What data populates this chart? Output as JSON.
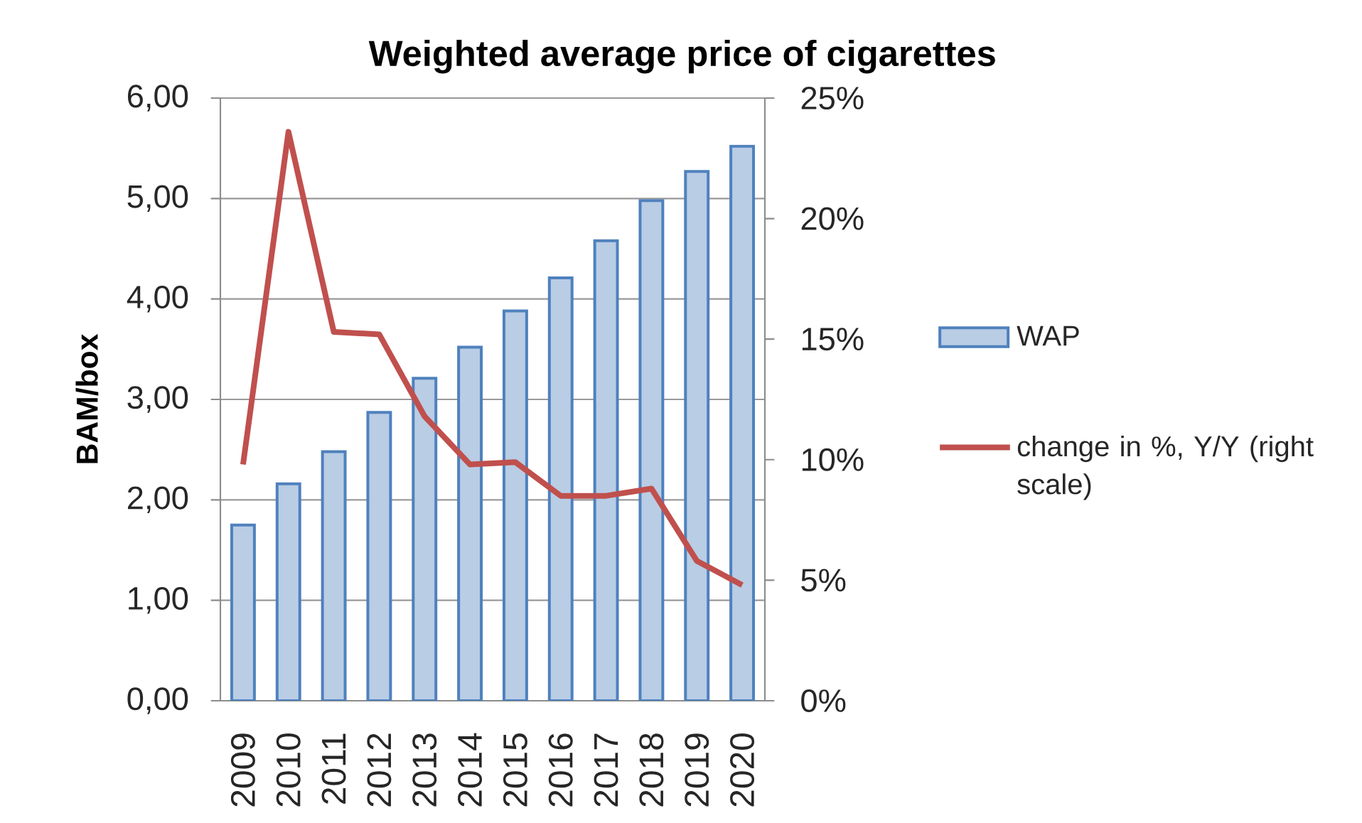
{
  "chart_data": {
    "type": "bar",
    "title": "Weighted average price of cigarettes",
    "ylabel": "BAM/box",
    "categories": [
      "2009",
      "2010",
      "2011",
      "2012",
      "2013",
      "2014",
      "2015",
      "2016",
      "2017",
      "2018",
      "2019",
      "2020"
    ],
    "series": [
      {
        "name": "WAP",
        "color": "#4f81bd",
        "values": [
          1.75,
          2.16,
          2.48,
          2.87,
          3.21,
          3.52,
          3.88,
          4.21,
          4.58,
          4.98,
          5.27,
          5.52
        ]
      },
      {
        "name": "change in %, Y/Y (right scale)",
        "type": "line",
        "axis": "y2",
        "color": "#c0504d",
        "values": [
          9.8,
          23.6,
          15.3,
          15.2,
          11.8,
          9.8,
          9.9,
          8.5,
          8.5,
          8.8,
          5.8,
          4.8
        ]
      }
    ],
    "ylim": [
      0,
      6
    ],
    "yticks": [
      {
        "value": 0,
        "label": "0,00"
      },
      {
        "value": 1,
        "label": "1,00"
      },
      {
        "value": 2,
        "label": "2,00"
      },
      {
        "value": 3,
        "label": "3,00"
      },
      {
        "value": 4,
        "label": "4,00"
      },
      {
        "value": 5,
        "label": "5,00"
      },
      {
        "value": 6,
        "label": "6,00"
      }
    ],
    "y2lim": [
      0,
      25
    ],
    "y2ticks": [
      {
        "value": 0,
        "label": "0%"
      },
      {
        "value": 5,
        "label": "5%"
      },
      {
        "value": 10,
        "label": "10%"
      },
      {
        "value": 15,
        "label": "15%"
      },
      {
        "value": 20,
        "label": "20%"
      },
      {
        "value": 25,
        "label": "25%"
      }
    ],
    "grid": "y",
    "legend": "right"
  }
}
